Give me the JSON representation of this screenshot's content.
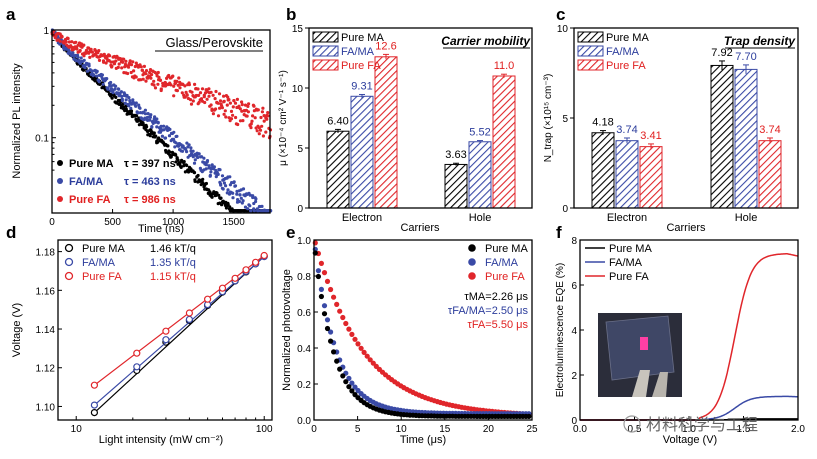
{
  "colors": {
    "pure_ma": "#000000",
    "fa_ma": "#3a4aa6",
    "pure_fa": "#e0262b",
    "fa_ma_text": "#2c3d9c",
    "pure_fa_text": "#e02020"
  },
  "panel_letters": [
    "a",
    "b",
    "c",
    "d",
    "e",
    "f"
  ],
  "watermark": "材料科学与工程",
  "chart_data": [
    {
      "id": "a",
      "type": "scatter",
      "title": "Glass/Perovskite",
      "xlabel": "Time (ns)",
      "ylabel": "Normalized PL intensity",
      "xlim": [
        0,
        1800
      ],
      "ylim": [
        0.02,
        1.0
      ],
      "yscale": "log",
      "xticks": [
        "0",
        "500",
        "1000",
        "1500"
      ],
      "yticks": [
        "1",
        "0.1"
      ],
      "series": [
        {
          "name": "Pure MA",
          "tau_label": "τ = 397 ns",
          "tau_ns": 397,
          "color": "#000000"
        },
        {
          "name": "FA/MA",
          "tau_label": "τ = 463 ns",
          "tau_ns": 463,
          "color": "#3a4aa6"
        },
        {
          "name": "Pure FA",
          "tau_label": "τ = 986 ns",
          "tau_ns": 986,
          "color": "#e0262b"
        }
      ]
    },
    {
      "id": "b",
      "type": "bar",
      "title": "Carrier mobility",
      "xlabel": "Carriers",
      "ylabel": "μ (×10⁻⁴ cm² V⁻¹ s⁻¹)",
      "ylim": [
        0,
        15
      ],
      "yticks": [
        "0",
        "5",
        "10",
        "15"
      ],
      "categories": [
        "Electron",
        "Hole"
      ],
      "series": [
        {
          "name": "Pure MA",
          "values": [
            6.4,
            3.63
          ],
          "labels": [
            "6.40",
            "3.63"
          ],
          "errors": [
            0.15,
            0.1
          ],
          "color": "#000000"
        },
        {
          "name": "FA/MA",
          "values": [
            9.31,
            5.52
          ],
          "labels": [
            "9.31",
            "5.52"
          ],
          "errors": [
            0.15,
            0.1
          ],
          "color": "#3a4aa6"
        },
        {
          "name": "Pure FA",
          "values": [
            12.6,
            11.0
          ],
          "labels": [
            "12.6",
            "11.0"
          ],
          "errors": [
            0.2,
            0.15
          ],
          "color": "#e0262b"
        }
      ]
    },
    {
      "id": "c",
      "type": "bar",
      "title": "Trap density",
      "xlabel": "Carriers",
      "ylabel": "N_trap (×10¹⁵ cm⁻³)",
      "ylim": [
        0,
        10
      ],
      "yticks": [
        "0",
        "5",
        "10"
      ],
      "categories": [
        "Electron",
        "Hole"
      ],
      "series": [
        {
          "name": "Pure MA",
          "values": [
            4.18,
            7.92
          ],
          "labels": [
            "4.18",
            "7.92"
          ],
          "errors": [
            0.12,
            0.25
          ],
          "color": "#000000"
        },
        {
          "name": "FA/MA",
          "values": [
            3.74,
            7.7
          ],
          "labels": [
            "3.74",
            "7.70"
          ],
          "errors": [
            0.15,
            0.25
          ],
          "color": "#3a4aa6"
        },
        {
          "name": "Pure FA",
          "values": [
            3.41,
            3.74
          ],
          "labels": [
            "3.41",
            "3.74"
          ],
          "errors": [
            0.15,
            0.15
          ],
          "color": "#e0262b"
        }
      ]
    },
    {
      "id": "d",
      "type": "line",
      "xlabel": "Light intensity (mW cm⁻²)",
      "ylabel": "Voltage (V)",
      "xscale": "log",
      "xlim": [
        8,
        110
      ],
      "ylim": [
        1.093,
        1.186
      ],
      "xticks": [
        {
          "v": 10,
          "label": "10"
        },
        {
          "v": 100,
          "label": "100"
        }
      ],
      "yticks": [
        {
          "v": 1.1,
          "label": "1.10"
        },
        {
          "v": 1.12,
          "label": "1.12"
        },
        {
          "v": 1.14,
          "label": "1.14"
        },
        {
          "v": 1.16,
          "label": "1.16"
        },
        {
          "v": 1.18,
          "label": "1.18"
        }
      ],
      "x": [
        12.5,
        21,
        30,
        40,
        50,
        60,
        70,
        80,
        90,
        100
      ],
      "series": [
        {
          "name": "Pure MA",
          "slope_label": "1.46 kT/q",
          "y": [
            1.0968,
            1.1186,
            1.1332,
            1.1443,
            1.1522,
            1.1591,
            1.1648,
            1.1695,
            1.1737,
            1.1776
          ],
          "color": "#000000"
        },
        {
          "name": "FA/MA",
          "slope_label": "1.35 kT/q",
          "y": [
            1.1007,
            1.1205,
            1.1345,
            1.145,
            1.1526,
            1.1593,
            1.1649,
            1.1698,
            1.1737,
            1.1774
          ],
          "color": "#3a4aa6"
        },
        {
          "name": "Pure FA",
          "slope_label": "1.15 kT/q",
          "y": [
            1.111,
            1.1275,
            1.1389,
            1.1483,
            1.1554,
            1.1611,
            1.1662,
            1.1706,
            1.1745,
            1.178
          ],
          "color": "#e0262b"
        }
      ]
    },
    {
      "id": "e",
      "type": "scatter",
      "xlabel": "Time (μs)",
      "ylabel": "Normalized photovoltage",
      "xlim": [
        0,
        25
      ],
      "ylim": [
        0,
        1.0
      ],
      "xticks": [
        "0",
        "5",
        "10",
        "15",
        "20",
        "25"
      ],
      "yticks": [
        "0.0",
        "0.2",
        "0.4",
        "0.6",
        "0.8",
        "1.0"
      ],
      "series": [
        {
          "name": "Pure MA",
          "tau_label": "τMA=2.26 μs",
          "tau_us": 2.26,
          "color": "#000000"
        },
        {
          "name": "FA/MA",
          "tau_label": "τFA/MA=2.50 μs",
          "tau_us": 2.5,
          "color": "#3a4aa6"
        },
        {
          "name": "Pure FA",
          "tau_label": "τFA=5.50 μs",
          "tau_us": 5.5,
          "color": "#e0262b"
        }
      ]
    },
    {
      "id": "f",
      "type": "line",
      "xlabel": "Voltage (V)",
      "ylabel": "Electroluminescence EQE (%)",
      "xlim": [
        0,
        2.0
      ],
      "ylim": [
        0,
        8
      ],
      "xticks": [
        "0.0",
        "0.5",
        "1.0",
        "1.5",
        "2.0"
      ],
      "yticks": [
        "0",
        "2",
        "4",
        "6",
        "8"
      ],
      "series": [
        {
          "name": "Pure MA",
          "peak_eqe": 0.05,
          "color": "#000000"
        },
        {
          "name": "FA/MA",
          "peak_eqe": 1.05,
          "color": "#3a4aa6"
        },
        {
          "name": "Pure FA",
          "peak_eqe": 7.4,
          "color": "#e0262b"
        }
      ]
    }
  ]
}
